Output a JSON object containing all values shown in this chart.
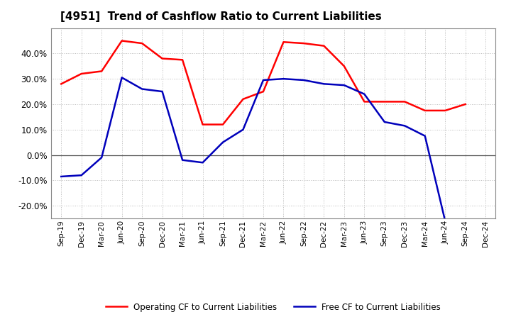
{
  "title": "[4951]  Trend of Cashflow Ratio to Current Liabilities",
  "x_labels": [
    "Sep-19",
    "Dec-19",
    "Mar-20",
    "Jun-20",
    "Sep-20",
    "Dec-20",
    "Mar-21",
    "Jun-21",
    "Sep-21",
    "Dec-21",
    "Mar-22",
    "Jun-22",
    "Sep-22",
    "Dec-22",
    "Mar-23",
    "Jun-23",
    "Sep-23",
    "Dec-23",
    "Mar-24",
    "Jun-24",
    "Sep-24",
    "Dec-24"
  ],
  "operating_cf": [
    28.0,
    32.0,
    33.0,
    45.0,
    44.0,
    38.0,
    37.5,
    12.0,
    12.0,
    22.0,
    25.0,
    44.5,
    44.0,
    43.0,
    35.0,
    21.0,
    21.0,
    21.0,
    17.5,
    17.5,
    20.0,
    null
  ],
  "free_cf": [
    -8.5,
    -8.0,
    -1.0,
    30.5,
    26.0,
    25.0,
    -2.0,
    -3.0,
    5.0,
    10.0,
    29.5,
    30.0,
    29.5,
    28.0,
    27.5,
    24.0,
    13.0,
    11.5,
    7.5,
    -26.0,
    null,
    null
  ],
  "operating_color": "#FF0000",
  "free_color": "#0000BB",
  "ylim": [
    -25,
    50
  ],
  "yticks": [
    -20,
    -10,
    0,
    10,
    20,
    30,
    40
  ],
  "background_color": "#FFFFFF",
  "grid_color": "#AAAAAA",
  "legend_op": "Operating CF to Current Liabilities",
  "legend_free": "Free CF to Current Liabilities"
}
